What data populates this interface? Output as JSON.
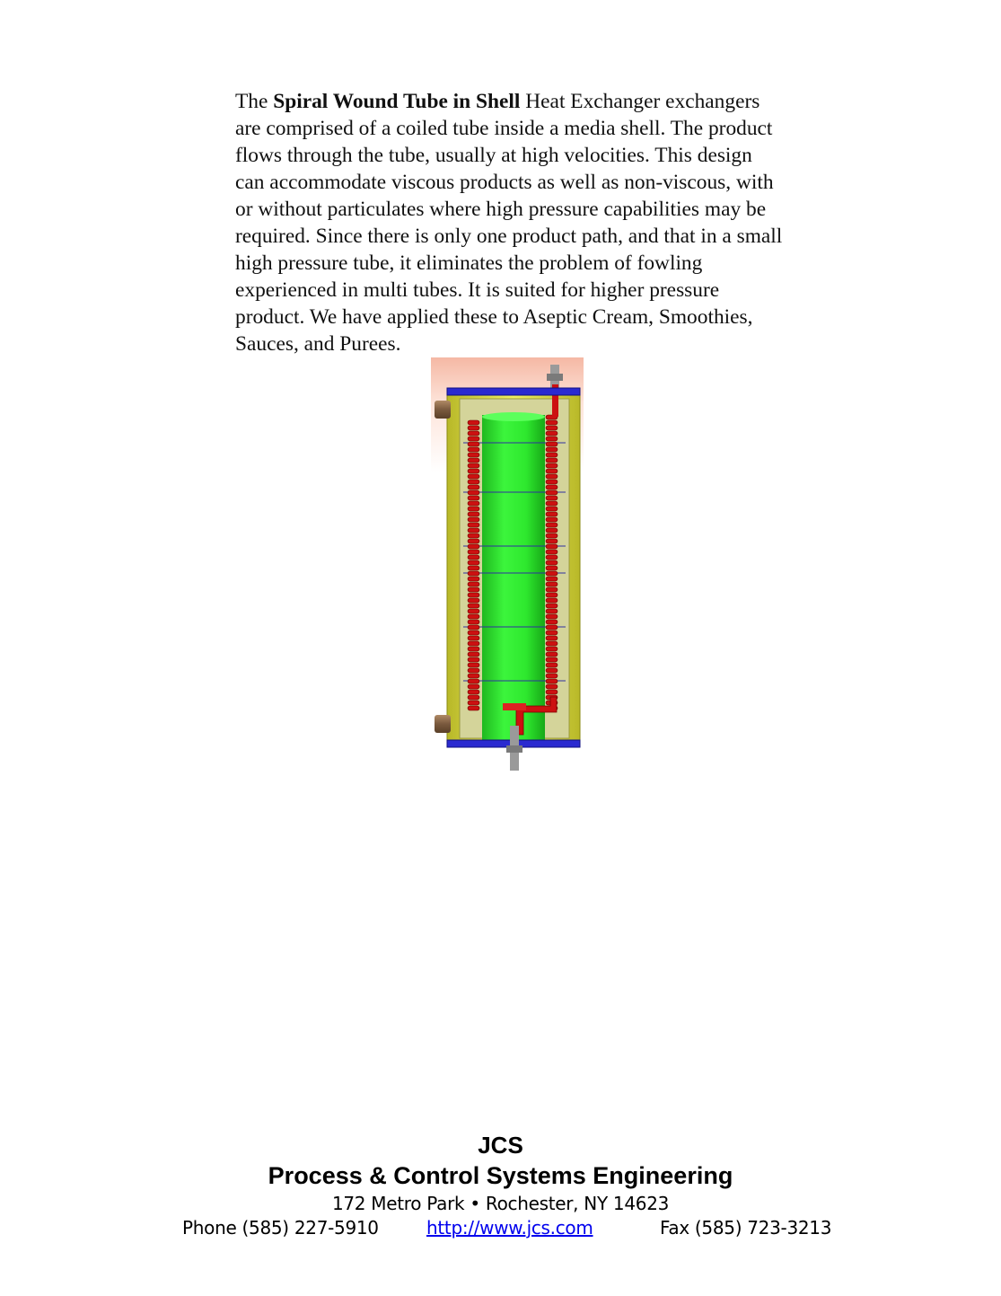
{
  "description": {
    "line1_prefix": "The ",
    "line1_bold": "Spiral Wound Tube in Shell",
    "line1_suffix": " Heat Exchanger exchangers",
    "line2": "are comprised of a coiled tube inside a media shell. The product",
    "line3": "flows through the tube, usually at high velocities. This design",
    "line4": "can accommodate viscous products as well as non-viscous, with",
    "line5": "or without particulates where high pressure capabilities may be",
    "line6": "required. Since there is only one product path, and that in a small",
    "line7": "high pressure tube, it eliminates the problem of fowling",
    "line8": "experienced in multi tubes. It is suited for higher pressure",
    "line9": "product. We have applied these to Aseptic Cream, Smoothies,",
    "line10": "Sauces, and Purees."
  },
  "figure": {
    "colors": {
      "background": "#f7c8b4",
      "shell": "#e4e44a",
      "shell_dark": "#b8b828",
      "inner_shell": "#c9c98a",
      "core": "#2ee82e",
      "flange": "#2a2ad0",
      "coil": "#cc1111",
      "nozzle": "#8a6a4a",
      "fitting": "#9a9a9a"
    }
  },
  "footer": {
    "company": "JCS",
    "tagline": "Process & Control Systems Engineering",
    "address": "172 Metro Park • Rochester, NY 14623",
    "phone": "Phone (585) 227-5910",
    "website": "http://www.jcs.com",
    "fax": "Fax (585) 723-3213"
  }
}
